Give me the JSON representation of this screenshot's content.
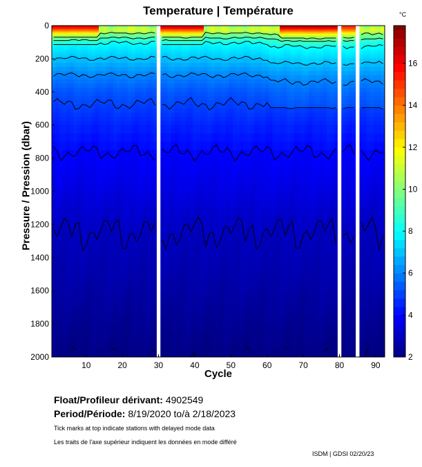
{
  "chart_data": {
    "type": "heatmap",
    "title": "Temperature | Température",
    "xlabel": "Cycle",
    "ylabel": "Pressure / Pression (dbar)",
    "colorbar_unit": "°C",
    "xlim": [
      0.5,
      92.5
    ],
    "ylim": [
      2000,
      0
    ],
    "x_ticks": [
      10,
      20,
      30,
      40,
      50,
      60,
      70,
      80,
      90
    ],
    "y_ticks": [
      0,
      200,
      400,
      600,
      800,
      1000,
      1200,
      1400,
      1600,
      1800,
      2000
    ],
    "colorbar_range": [
      2,
      17.8
    ],
    "colorbar_ticks": [
      2,
      4,
      6,
      8,
      10,
      12,
      14,
      16
    ],
    "colormap": "jet",
    "contour_levels": [
      2,
      3,
      4,
      5,
      6,
      7,
      8,
      9,
      10
    ],
    "missing_cycles": [
      30,
      80,
      85
    ],
    "mean_profile": {
      "pressure": [
        0,
        50,
        100,
        200,
        300,
        400,
        600,
        800,
        1000,
        1200,
        1500,
        1800,
        2000
      ],
      "temperature": [
        15,
        10,
        8,
        7,
        6,
        5.3,
        4.5,
        3.9,
        3.5,
        3.05,
        2.7,
        2.3,
        2.05
      ]
    },
    "warm_surface_cycles": [
      [
        1,
        13,
        16.5
      ],
      [
        31,
        42,
        17
      ],
      [
        64,
        79,
        17
      ],
      [
        81,
        84,
        15
      ]
    ]
  },
  "info": {
    "float_label": "Float/Profileur dérivant:",
    "float_id": "4902549",
    "period_label": "Period/Période:",
    "period_value": "8/19/2020  to/à  2/18/2023",
    "note_en": "Tick marks at top indicate stations with delayed mode data",
    "note_fr": "Les traits de l'axe supérieur indiquent les données en mode différé",
    "footer": "ISDM | GDSI  02/20/23"
  }
}
